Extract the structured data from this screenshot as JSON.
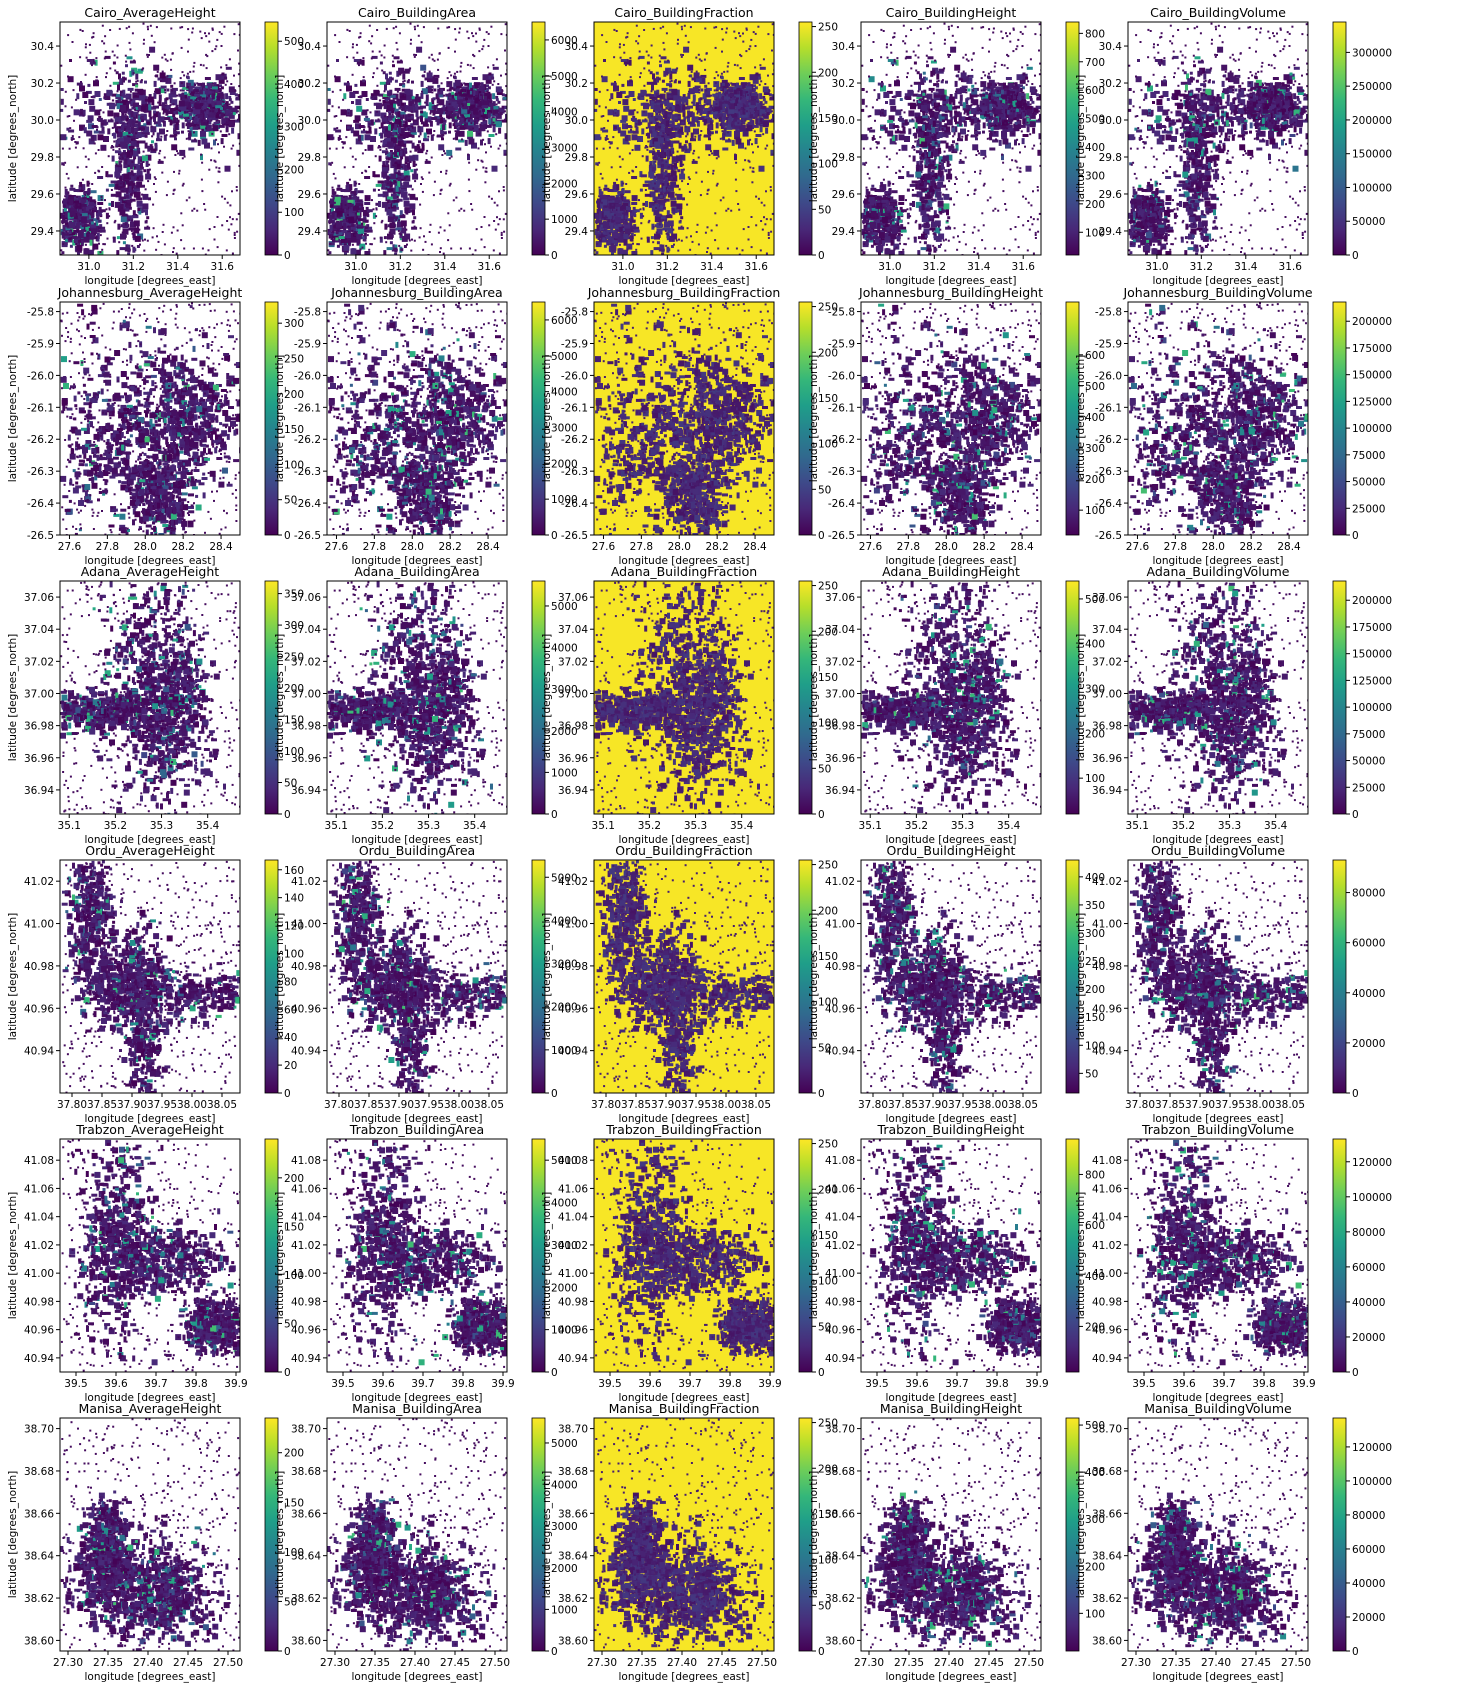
{
  "figure": {
    "xlabel": "longitude [degrees_east]",
    "ylabel": "latitude [degrees_north]",
    "colormap": [
      "#440154",
      "#482878",
      "#3e4989",
      "#31688e",
      "#26828e",
      "#1f9e89",
      "#35b779",
      "#6ece58",
      "#b5de2b",
      "#fde725"
    ]
  },
  "chart_data": [
    {
      "type": "heatmap",
      "title": "Cairo_AverageHeight",
      "xticks": [
        "31.0",
        "31.2",
        "31.4",
        "31.6"
      ],
      "yticks": [
        "30.4",
        "30.2",
        "30.0",
        "29.8",
        "29.6",
        "29.4"
      ],
      "xlim": [
        30.87,
        31.68
      ],
      "ylim": [
        29.27,
        30.53
      ],
      "cticks": [
        "500",
        "400",
        "300",
        "200",
        "100",
        "0"
      ],
      "clim": [
        0,
        545
      ]
    },
    {
      "type": "heatmap",
      "title": "Cairo_BuildingArea",
      "xticks": [
        "31.0",
        "31.2",
        "31.4",
        "31.6"
      ],
      "yticks": [
        "30.4",
        "30.2",
        "30.0",
        "29.8",
        "29.6",
        "29.4"
      ],
      "xlim": [
        30.87,
        31.68
      ],
      "ylim": [
        29.27,
        30.53
      ],
      "cticks": [
        "6000",
        "5000",
        "4000",
        "3000",
        "2000",
        "1000",
        "0"
      ],
      "clim": [
        0,
        6500
      ]
    },
    {
      "type": "heatmap",
      "title": "Cairo_BuildingFraction",
      "xticks": [
        "31.0",
        "31.2",
        "31.4",
        "31.6"
      ],
      "yticks": [
        "30.4",
        "30.2",
        "30.0",
        "29.8",
        "29.6",
        "29.4"
      ],
      "xlim": [
        30.87,
        31.68
      ],
      "ylim": [
        29.27,
        30.53
      ],
      "cticks": [
        "250",
        "200",
        "150",
        "100",
        "50",
        "0"
      ],
      "clim": [
        0,
        255
      ]
    },
    {
      "type": "heatmap",
      "title": "Cairo_BuildingHeight",
      "xticks": [
        "31.0",
        "31.2",
        "31.4",
        "31.6"
      ],
      "yticks": [
        "30.4",
        "30.2",
        "30.0",
        "29.8",
        "29.6",
        "29.4"
      ],
      "xlim": [
        30.87,
        31.68
      ],
      "ylim": [
        29.27,
        30.53
      ],
      "cticks": [
        "800",
        "700",
        "600",
        "500",
        "400",
        "300",
        "200",
        "100"
      ],
      "clim": [
        20,
        840
      ]
    },
    {
      "type": "heatmap",
      "title": "Cairo_BuildingVolume",
      "xticks": [
        "31.0",
        "31.2",
        "31.4",
        "31.6"
      ],
      "yticks": [
        "30.4",
        "30.2",
        "30.0",
        "29.8",
        "29.6",
        "29.4"
      ],
      "xlim": [
        30.87,
        31.68
      ],
      "ylim": [
        29.27,
        30.53
      ],
      "cticks": [
        "300000",
        "250000",
        "200000",
        "150000",
        "100000",
        "50000",
        "0"
      ],
      "clim": [
        0,
        345000
      ]
    },
    {
      "type": "heatmap",
      "title": "Johannesburg_AverageHeight",
      "xticks": [
        "27.6",
        "27.8",
        "28.0",
        "28.2",
        "28.4"
      ],
      "yticks": [
        "-25.8",
        "-25.9",
        "-26.0",
        "-26.1",
        "-26.2",
        "-26.3",
        "-26.4",
        "-26.5"
      ],
      "xlim": [
        27.55,
        28.5
      ],
      "ylim": [
        -26.5,
        -25.77
      ],
      "cticks": [
        "300",
        "250",
        "200",
        "150",
        "100",
        "50",
        "0"
      ],
      "clim": [
        0,
        330
      ]
    },
    {
      "type": "heatmap",
      "title": "Johannesburg_BuildingArea",
      "xticks": [
        "27.6",
        "27.8",
        "28.0",
        "28.2",
        "28.4"
      ],
      "yticks": [
        "-25.8",
        "-25.9",
        "-26.0",
        "-26.1",
        "-26.2",
        "-26.3",
        "-26.4",
        "-26.5"
      ],
      "xlim": [
        27.55,
        28.5
      ],
      "ylim": [
        -26.5,
        -25.77
      ],
      "cticks": [
        "6000",
        "5000",
        "4000",
        "3000",
        "2000",
        "1000",
        "0"
      ],
      "clim": [
        0,
        6500
      ]
    },
    {
      "type": "heatmap",
      "title": "Johannesburg_BuildingFraction",
      "xticks": [
        "27.6",
        "27.8",
        "28.0",
        "28.2",
        "28.4"
      ],
      "yticks": [
        "-25.8",
        "-25.9",
        "-26.0",
        "-26.1",
        "-26.2",
        "-26.3",
        "-26.4",
        "-26.5"
      ],
      "xlim": [
        27.55,
        28.5
      ],
      "ylim": [
        -26.5,
        -25.77
      ],
      "cticks": [
        "250",
        "200",
        "150",
        "100",
        "50",
        "0"
      ],
      "clim": [
        0,
        255
      ]
    },
    {
      "type": "heatmap",
      "title": "Johannesburg_BuildingHeight",
      "xticks": [
        "27.6",
        "27.8",
        "28.0",
        "28.2",
        "28.4"
      ],
      "yticks": [
        "-25.8",
        "-25.9",
        "-26.0",
        "-26.1",
        "-26.2",
        "-26.3",
        "-26.4",
        "-26.5"
      ],
      "xlim": [
        27.55,
        28.5
      ],
      "ylim": [
        -26.5,
        -25.77
      ],
      "cticks": [
        "600",
        "500",
        "400",
        "300",
        "200",
        "100"
      ],
      "clim": [
        20,
        770
      ]
    },
    {
      "type": "heatmap",
      "title": "Johannesburg_BuildingVolume",
      "xticks": [
        "27.6",
        "27.8",
        "28.0",
        "28.2",
        "28.4"
      ],
      "yticks": [
        "-25.8",
        "-25.9",
        "-26.0",
        "-26.1",
        "-26.2",
        "-26.3",
        "-26.4",
        "-26.5"
      ],
      "xlim": [
        27.55,
        28.5
      ],
      "ylim": [
        -26.5,
        -25.77
      ],
      "cticks": [
        "200000",
        "175000",
        "150000",
        "125000",
        "100000",
        "75000",
        "50000",
        "25000",
        "0"
      ],
      "clim": [
        0,
        218000
      ]
    },
    {
      "type": "heatmap",
      "title": "Adana_AverageHeight",
      "xticks": [
        "35.1",
        "35.2",
        "35.3",
        "35.4"
      ],
      "yticks": [
        "37.06",
        "37.04",
        "37.02",
        "37.00",
        "36.98",
        "36.96",
        "36.94"
      ],
      "xlim": [
        35.08,
        35.47
      ],
      "ylim": [
        36.925,
        37.07
      ],
      "cticks": [
        "350",
        "300",
        "250",
        "200",
        "150",
        "100",
        "50",
        "0"
      ],
      "clim": [
        0,
        370
      ]
    },
    {
      "type": "heatmap",
      "title": "Adana_BuildingArea",
      "xticks": [
        "35.1",
        "35.2",
        "35.3",
        "35.4"
      ],
      "yticks": [
        "37.06",
        "37.04",
        "37.02",
        "37.00",
        "36.98",
        "36.96",
        "36.94"
      ],
      "xlim": [
        35.08,
        35.47
      ],
      "ylim": [
        36.925,
        37.07
      ],
      "cticks": [
        "5000",
        "4000",
        "3000",
        "2000",
        "1000",
        "0"
      ],
      "clim": [
        0,
        5600
      ]
    },
    {
      "type": "heatmap",
      "title": "Adana_BuildingFraction",
      "xticks": [
        "35.1",
        "35.2",
        "35.3",
        "35.4"
      ],
      "yticks": [
        "37.06",
        "37.04",
        "37.02",
        "37.00",
        "36.98",
        "36.96",
        "36.94"
      ],
      "xlim": [
        35.08,
        35.47
      ],
      "ylim": [
        36.925,
        37.07
      ],
      "cticks": [
        "250",
        "200",
        "150",
        "100",
        "50",
        "0"
      ],
      "clim": [
        0,
        255
      ]
    },
    {
      "type": "heatmap",
      "title": "Adana_BuildingHeight",
      "xticks": [
        "35.1",
        "35.2",
        "35.3",
        "35.4"
      ],
      "yticks": [
        "37.06",
        "37.04",
        "37.02",
        "37.00",
        "36.98",
        "36.96",
        "36.94"
      ],
      "xlim": [
        35.08,
        35.47
      ],
      "ylim": [
        36.925,
        37.07
      ],
      "cticks": [
        "500",
        "400",
        "300",
        "200",
        "100"
      ],
      "clim": [
        20,
        540
      ]
    },
    {
      "type": "heatmap",
      "title": "Adana_BuildingVolume",
      "xticks": [
        "35.1",
        "35.2",
        "35.3",
        "35.4"
      ],
      "yticks": [
        "37.06",
        "37.04",
        "37.02",
        "37.00",
        "36.98",
        "36.96",
        "36.94"
      ],
      "xlim": [
        35.08,
        35.47
      ],
      "ylim": [
        36.925,
        37.07
      ],
      "cticks": [
        "200000",
        "175000",
        "150000",
        "125000",
        "100000",
        "75000",
        "50000",
        "25000",
        "0"
      ],
      "clim": [
        0,
        218000
      ]
    },
    {
      "type": "heatmap",
      "title": "Ordu_AverageHeight",
      "xticks": [
        "37.80",
        "37.85",
        "37.90",
        "37.95",
        "38.00",
        "38.05"
      ],
      "yticks": [
        "41.02",
        "41.00",
        "40.98",
        "40.96",
        "40.94"
      ],
      "xlim": [
        37.78,
        38.08
      ],
      "ylim": [
        40.92,
        41.03
      ],
      "cticks": [
        "160",
        "140",
        "120",
        "100",
        "80",
        "60",
        "40",
        "20",
        "0"
      ],
      "clim": [
        0,
        167
      ]
    },
    {
      "type": "heatmap",
      "title": "Ordu_BuildingArea",
      "xticks": [
        "37.80",
        "37.85",
        "37.90",
        "37.95",
        "38.00",
        "38.05"
      ],
      "yticks": [
        "41.02",
        "41.00",
        "40.98",
        "40.96",
        "40.94"
      ],
      "xlim": [
        37.78,
        38.08
      ],
      "ylim": [
        40.92,
        41.03
      ],
      "cticks": [
        "5000",
        "4000",
        "3000",
        "2000",
        "1000",
        "0"
      ],
      "clim": [
        0,
        5400
      ]
    },
    {
      "type": "heatmap",
      "title": "Ordu_BuildingFraction",
      "xticks": [
        "37.80",
        "37.85",
        "37.90",
        "37.95",
        "38.00",
        "38.05"
      ],
      "yticks": [
        "41.02",
        "41.00",
        "40.98",
        "40.96",
        "40.94"
      ],
      "xlim": [
        37.78,
        38.08
      ],
      "ylim": [
        40.92,
        41.03
      ],
      "cticks": [
        "250",
        "200",
        "150",
        "100",
        "50",
        "0"
      ],
      "clim": [
        0,
        255
      ]
    },
    {
      "type": "heatmap",
      "title": "Ordu_BuildingHeight",
      "xticks": [
        "37.80",
        "37.85",
        "37.90",
        "37.95",
        "38.00",
        "38.05"
      ],
      "yticks": [
        "41.02",
        "41.00",
        "40.98",
        "40.96",
        "40.94"
      ],
      "xlim": [
        37.78,
        38.08
      ],
      "ylim": [
        40.92,
        41.03
      ],
      "cticks": [
        "400",
        "350",
        "300",
        "250",
        "200",
        "150",
        "100",
        "50"
      ],
      "clim": [
        15,
        430
      ]
    },
    {
      "type": "heatmap",
      "title": "Ordu_BuildingVolume",
      "xticks": [
        "37.80",
        "37.85",
        "37.90",
        "37.95",
        "38.00",
        "38.05"
      ],
      "yticks": [
        "41.02",
        "41.00",
        "40.98",
        "40.96",
        "40.94"
      ],
      "xlim": [
        37.78,
        38.08
      ],
      "ylim": [
        40.92,
        41.03
      ],
      "cticks": [
        "80000",
        "60000",
        "40000",
        "20000",
        "0"
      ],
      "clim": [
        0,
        93000
      ]
    },
    {
      "type": "heatmap",
      "title": "Trabzon_AverageHeight",
      "xticks": [
        "39.5",
        "39.6",
        "39.7",
        "39.8",
        "39.9"
      ],
      "yticks": [
        "41.08",
        "41.06",
        "41.04",
        "41.02",
        "41.00",
        "40.98",
        "40.96",
        "40.94"
      ],
      "xlim": [
        39.46,
        39.91
      ],
      "ylim": [
        40.93,
        41.095
      ],
      "cticks": [
        "200",
        "150",
        "100",
        "50",
        "0"
      ],
      "clim": [
        0,
        240
      ]
    },
    {
      "type": "heatmap",
      "title": "Trabzon_BuildingArea",
      "xticks": [
        "39.5",
        "39.6",
        "39.7",
        "39.8",
        "39.9"
      ],
      "yticks": [
        "41.08",
        "41.06",
        "41.04",
        "41.02",
        "41.00",
        "40.98",
        "40.96",
        "40.94"
      ],
      "xlim": [
        39.46,
        39.91
      ],
      "ylim": [
        40.93,
        41.095
      ],
      "cticks": [
        "5000",
        "4000",
        "3000",
        "2000",
        "1000",
        "0"
      ],
      "clim": [
        0,
        5500
      ]
    },
    {
      "type": "heatmap",
      "title": "Trabzon_BuildingFraction",
      "xticks": [
        "39.5",
        "39.6",
        "39.7",
        "39.8",
        "39.9"
      ],
      "yticks": [
        "41.08",
        "41.06",
        "41.04",
        "41.02",
        "41.00",
        "40.98",
        "40.96",
        "40.94"
      ],
      "xlim": [
        39.46,
        39.91
      ],
      "ylim": [
        40.93,
        41.095
      ],
      "cticks": [
        "250",
        "200",
        "150",
        "100",
        "50",
        "0"
      ],
      "clim": [
        0,
        255
      ]
    },
    {
      "type": "heatmap",
      "title": "Trabzon_BuildingHeight",
      "xticks": [
        "39.5",
        "39.6",
        "39.7",
        "39.8",
        "39.9"
      ],
      "yticks": [
        "41.08",
        "41.06",
        "41.04",
        "41.02",
        "41.00",
        "40.98",
        "40.96",
        "40.94"
      ],
      "xlim": [
        39.46,
        39.91
      ],
      "ylim": [
        40.93,
        41.095
      ],
      "cticks": [
        "800",
        "600",
        "400",
        "200"
      ],
      "clim": [
        20,
        940
      ]
    },
    {
      "type": "heatmap",
      "title": "Trabzon_BuildingVolume",
      "xticks": [
        "39.5",
        "39.6",
        "39.7",
        "39.8",
        "39.9"
      ],
      "yticks": [
        "41.08",
        "41.06",
        "41.04",
        "41.02",
        "41.00",
        "40.98",
        "40.96",
        "40.94"
      ],
      "xlim": [
        39.46,
        39.91
      ],
      "ylim": [
        40.93,
        41.095
      ],
      "cticks": [
        "120000",
        "100000",
        "80000",
        "60000",
        "40000",
        "20000",
        "0"
      ],
      "clim": [
        0,
        133000
      ]
    },
    {
      "type": "heatmap",
      "title": "Manisa_AverageHeight",
      "xticks": [
        "27.30",
        "27.35",
        "27.40",
        "27.45",
        "27.50"
      ],
      "yticks": [
        "38.70",
        "38.68",
        "38.66",
        "38.64",
        "38.62",
        "38.60"
      ],
      "xlim": [
        27.29,
        27.515
      ],
      "ylim": [
        38.595,
        38.705
      ],
      "cticks": [
        "200",
        "150",
        "100",
        "50",
        "0"
      ],
      "clim": [
        0,
        235
      ]
    },
    {
      "type": "heatmap",
      "title": "Manisa_BuildingArea",
      "xticks": [
        "27.30",
        "27.35",
        "27.40",
        "27.45",
        "27.50"
      ],
      "yticks": [
        "38.70",
        "38.68",
        "38.66",
        "38.64",
        "38.62",
        "38.60"
      ],
      "xlim": [
        27.29,
        27.515
      ],
      "ylim": [
        38.595,
        38.705
      ],
      "cticks": [
        "5000",
        "4000",
        "3000",
        "2000",
        "1000",
        "0"
      ],
      "clim": [
        0,
        5600
      ]
    },
    {
      "type": "heatmap",
      "title": "Manisa_BuildingFraction",
      "xticks": [
        "27.30",
        "27.35",
        "27.40",
        "27.45",
        "27.50"
      ],
      "yticks": [
        "38.70",
        "38.68",
        "38.66",
        "38.64",
        "38.62",
        "38.60"
      ],
      "xlim": [
        27.29,
        27.515
      ],
      "ylim": [
        38.595,
        38.705
      ],
      "cticks": [
        "250",
        "200",
        "150",
        "100",
        "50",
        "0"
      ],
      "clim": [
        0,
        255
      ]
    },
    {
      "type": "heatmap",
      "title": "Manisa_BuildingHeight",
      "xticks": [
        "27.30",
        "27.35",
        "27.40",
        "27.45",
        "27.50"
      ],
      "yticks": [
        "38.70",
        "38.68",
        "38.66",
        "38.64",
        "38.62",
        "38.60"
      ],
      "xlim": [
        27.29,
        27.515
      ],
      "ylim": [
        38.595,
        38.705
      ],
      "cticks": [
        "500",
        "400",
        "300",
        "200",
        "100"
      ],
      "clim": [
        20,
        515
      ]
    },
    {
      "type": "heatmap",
      "title": "Manisa_BuildingVolume",
      "xticks": [
        "27.30",
        "27.35",
        "27.40",
        "27.45",
        "27.50"
      ],
      "yticks": [
        "38.70",
        "38.68",
        "38.66",
        "38.64",
        "38.62",
        "38.60"
      ],
      "xlim": [
        27.29,
        27.515
      ],
      "ylim": [
        38.595,
        38.705
      ],
      "cticks": [
        "120000",
        "100000",
        "80000",
        "60000",
        "40000",
        "20000",
        "0"
      ],
      "clim": [
        0,
        137000
      ]
    }
  ]
}
